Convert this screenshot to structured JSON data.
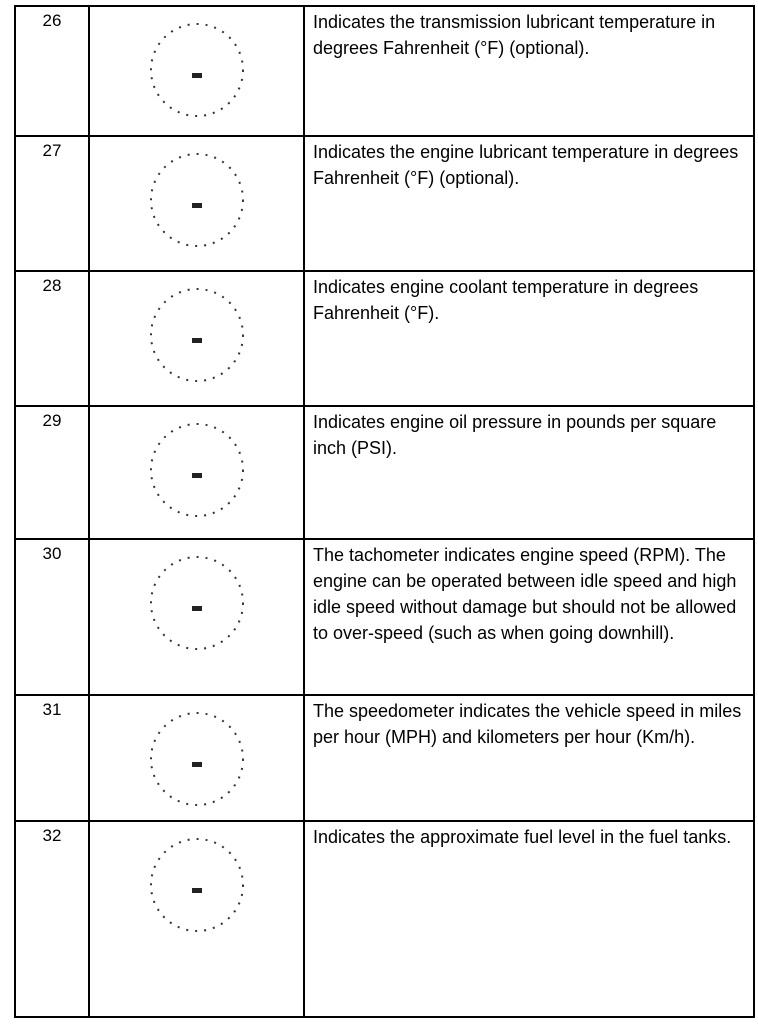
{
  "table": {
    "rows": [
      [
        "26",
        "Indicates the transmission lubricant temperature in degrees Fahrenheit (°F) (optional)."
      ],
      [
        "27",
        "Indicates the engine lubricant temperature in degrees Fahrenheit (°F) (optional)."
      ],
      [
        "28",
        "Indicates engine coolant temperature in degrees Fahrenheit (°F)."
      ],
      [
        "29",
        "Indicates engine oil pressure in pounds per square inch (PSI)."
      ],
      [
        "30",
        "The tachometer indicates engine speed (RPM). The engine can be operated between idle speed and high idle speed without damage but should not be allowed to over-speed (such as when going downhill)."
      ],
      [
        "31",
        "The speedometer indicates the vehicle speed in miles per hour (MPH) and kilometers per hour (Km/h)."
      ],
      [
        "32",
        "Indicates the approximate fuel level in the fuel tanks."
      ]
    ]
  }
}
